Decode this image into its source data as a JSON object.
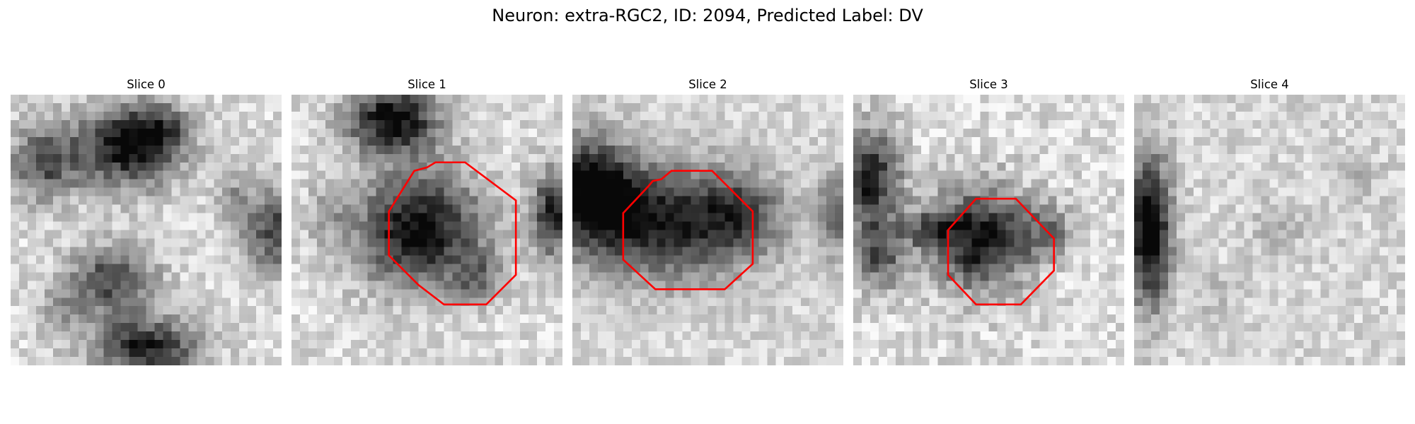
{
  "figure": {
    "title": "Neuron: extra-RGC2, ID: 2094, Predicted Label: DV",
    "overlay_color": "#ff0000"
  },
  "panels": [
    {
      "title": "Slice 0"
    },
    {
      "title": "Slice 1"
    },
    {
      "title": "Slice 2"
    },
    {
      "title": "Slice 3"
    },
    {
      "title": "Slice 4"
    }
  ]
}
